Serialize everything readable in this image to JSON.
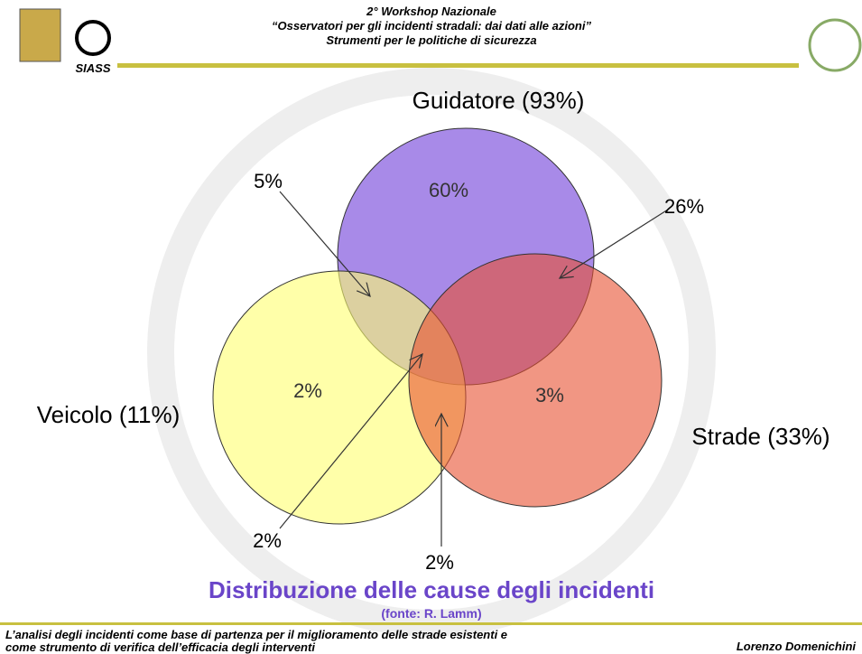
{
  "header": {
    "lines": [
      "2° Workshop Nazionale",
      "“Osservatori per gli incidenti stradali: dai dati alle azioni”",
      "Strumenti per le politiche di sicurezza"
    ],
    "logo_text": "SIASS"
  },
  "sets": [
    {
      "label": "Guidatore (93%)"
    },
    {
      "label": "Veicolo (11%)"
    },
    {
      "label": "Strade (33%)"
    }
  ],
  "regions": {
    "driver_only": "60%",
    "vehicle_only": "2%",
    "road_only": "3%",
    "driver_vehicle": "5%",
    "driver_road": "26%",
    "all_three": "2%",
    "vehicle_road": "2%"
  },
  "title": "Distribuzione delle cause degli incidenti",
  "source": "(fonte: R. Lamm)",
  "footer": {
    "lines": [
      "L’analisi degli incidenti come base di partenza per il miglioramento delle strade esistenti e",
      "come strumento di verifica dell’efficacia degli interventi"
    ],
    "author": "Lorenzo Domenichini"
  }
}
